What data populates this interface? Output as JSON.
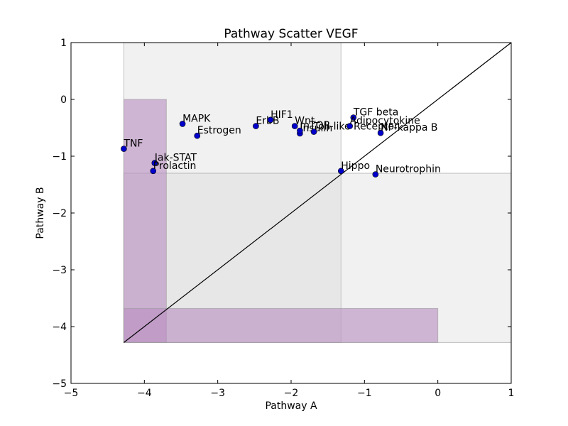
{
  "chart_data": {
    "type": "scatter",
    "title": "Pathway Scatter VEGF",
    "xlabel": "Pathway A",
    "ylabel": "Pathway B",
    "xlim": [
      -5,
      1
    ],
    "ylim": [
      -5,
      1
    ],
    "xticks": [
      -5,
      -4,
      -3,
      -2,
      -1,
      0,
      1
    ],
    "yticks": [
      -5,
      -4,
      -3,
      -2,
      -1,
      0,
      1
    ],
    "xtick_labels": [
      "−5",
      "−4",
      "−3",
      "−2",
      "−1",
      "0",
      "1"
    ],
    "ytick_labels": [
      "−5",
      "−4",
      "−3",
      "−2",
      "−1",
      "0",
      "1"
    ],
    "grid": false,
    "marker_color": "#0000cc",
    "diagonal_line": {
      "from": [
        -4.28,
        -4.28
      ],
      "to": [
        1,
        1
      ]
    },
    "shaded_regions": [
      {
        "x": [
          -4.28,
          -1.32
        ],
        "y": [
          -4.28,
          1
        ],
        "color": "#d0d0d0",
        "opacity": 0.3
      },
      {
        "x": [
          -4.28,
          1
        ],
        "y": [
          -4.28,
          -1.3
        ],
        "color": "#d0d0d0",
        "opacity": 0.3
      },
      {
        "x": [
          -4.28,
          -3.7
        ],
        "y": [
          -4.28,
          0
        ],
        "color": "#b98ec1",
        "opacity": 0.6
      },
      {
        "x": [
          -4.28,
          0
        ],
        "y": [
          -4.28,
          -3.68
        ],
        "color": "#b98ec1",
        "opacity": 0.6
      }
    ],
    "points": [
      {
        "label": "TNF",
        "x": -4.28,
        "y": -0.87
      },
      {
        "label": "MAPK",
        "x": -3.48,
        "y": -0.43
      },
      {
        "label": "Estrogen",
        "x": -3.28,
        "y": -0.64
      },
      {
        "label": "Jak-STAT",
        "x": -3.86,
        "y": -1.12
      },
      {
        "label": "Prolactin",
        "x": -3.88,
        "y": -1.26
      },
      {
        "label": "ErbB",
        "x": -2.48,
        "y": -0.47
      },
      {
        "label": "HIF1",
        "x": -2.28,
        "y": -0.36
      },
      {
        "label": "Wnt",
        "x": -1.95,
        "y": -0.47
      },
      {
        "label": "Insulin",
        "x": -1.88,
        "y": -0.6
      },
      {
        "label": "mTOR",
        "x": -1.88,
        "y": -0.55
      },
      {
        "label": "Toll-like Receptor",
        "x": -1.69,
        "y": -0.57
      },
      {
        "label": "TGF beta",
        "x": -1.15,
        "y": -0.32
      },
      {
        "label": "Adipocytokine",
        "x": -1.2,
        "y": -0.47
      },
      {
        "label": "NF-kappa B",
        "x": -0.78,
        "y": -0.59
      },
      {
        "label": "Hippo",
        "x": -1.32,
        "y": -1.26
      },
      {
        "label": "Neurotrophin",
        "x": -0.85,
        "y": -1.32
      }
    ]
  }
}
